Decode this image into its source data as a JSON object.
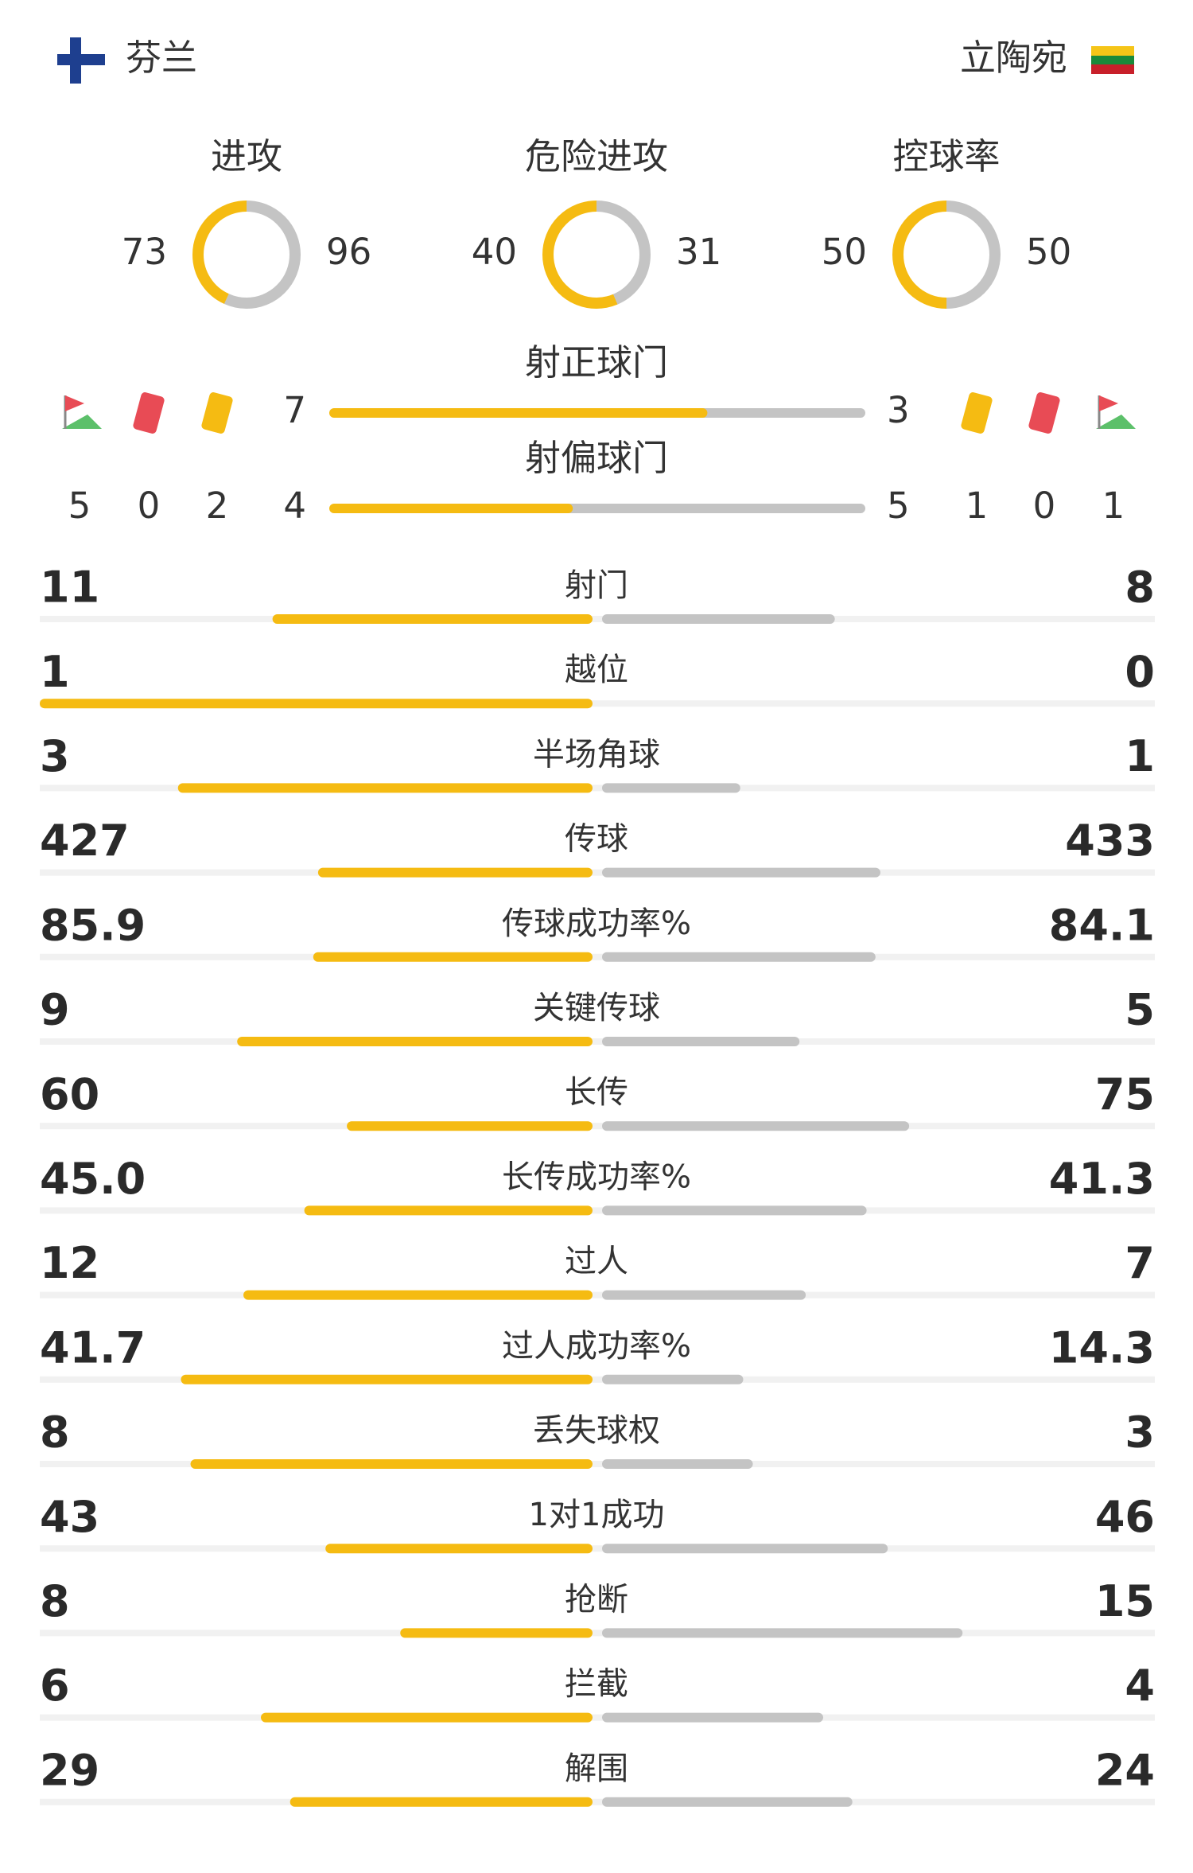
{
  "home": {
    "name": "芬兰"
  },
  "away": {
    "name": "立陶宛"
  },
  "rings": [
    {
      "label": "进攻",
      "home": 73,
      "away": 96
    },
    {
      "label": "危险进攻",
      "home": 40,
      "away": 31
    },
    {
      "label": "控球率",
      "home": 50,
      "away": 50
    }
  ],
  "shots": [
    {
      "label": "射正球门",
      "home": 7,
      "away": 3
    },
    {
      "label": "射偏球门",
      "home": 4,
      "away": 5
    }
  ],
  "events": {
    "home": {
      "corners": 5,
      "red": 0,
      "yellow": 2
    },
    "away": {
      "yellow": 1,
      "red": 0,
      "corners": 1
    }
  },
  "stats": [
    {
      "label": "射门",
      "home": 11,
      "away": 8
    },
    {
      "label": "越位",
      "home": 1,
      "away": 0
    },
    {
      "label": "半场角球",
      "home": 3,
      "away": 1
    },
    {
      "label": "传球",
      "home": 427,
      "away": 433
    },
    {
      "label": "传球成功率%",
      "home": 85.9,
      "away": 84.1
    },
    {
      "label": "关键传球",
      "home": 9,
      "away": 5
    },
    {
      "label": "长传",
      "home": 60,
      "away": 75
    },
    {
      "label": "长传成功率%",
      "home": {
        "value": 45,
        "label": "45.0"
      },
      "away": 41.3
    },
    {
      "label": "过人",
      "home": 12,
      "away": 7
    },
    {
      "label": "过人成功率%",
      "home": 41.7,
      "away": 14.3
    },
    {
      "label": "丢失球权",
      "home": 8,
      "away": 3
    },
    {
      "label": "1对1成功",
      "home": 43,
      "away": 46
    },
    {
      "label": "抢断",
      "home": 8,
      "away": 15
    },
    {
      "label": "拦截",
      "home": 6,
      "away": 4
    },
    {
      "label": "解围",
      "home": 29,
      "away": 24
    }
  ]
}
